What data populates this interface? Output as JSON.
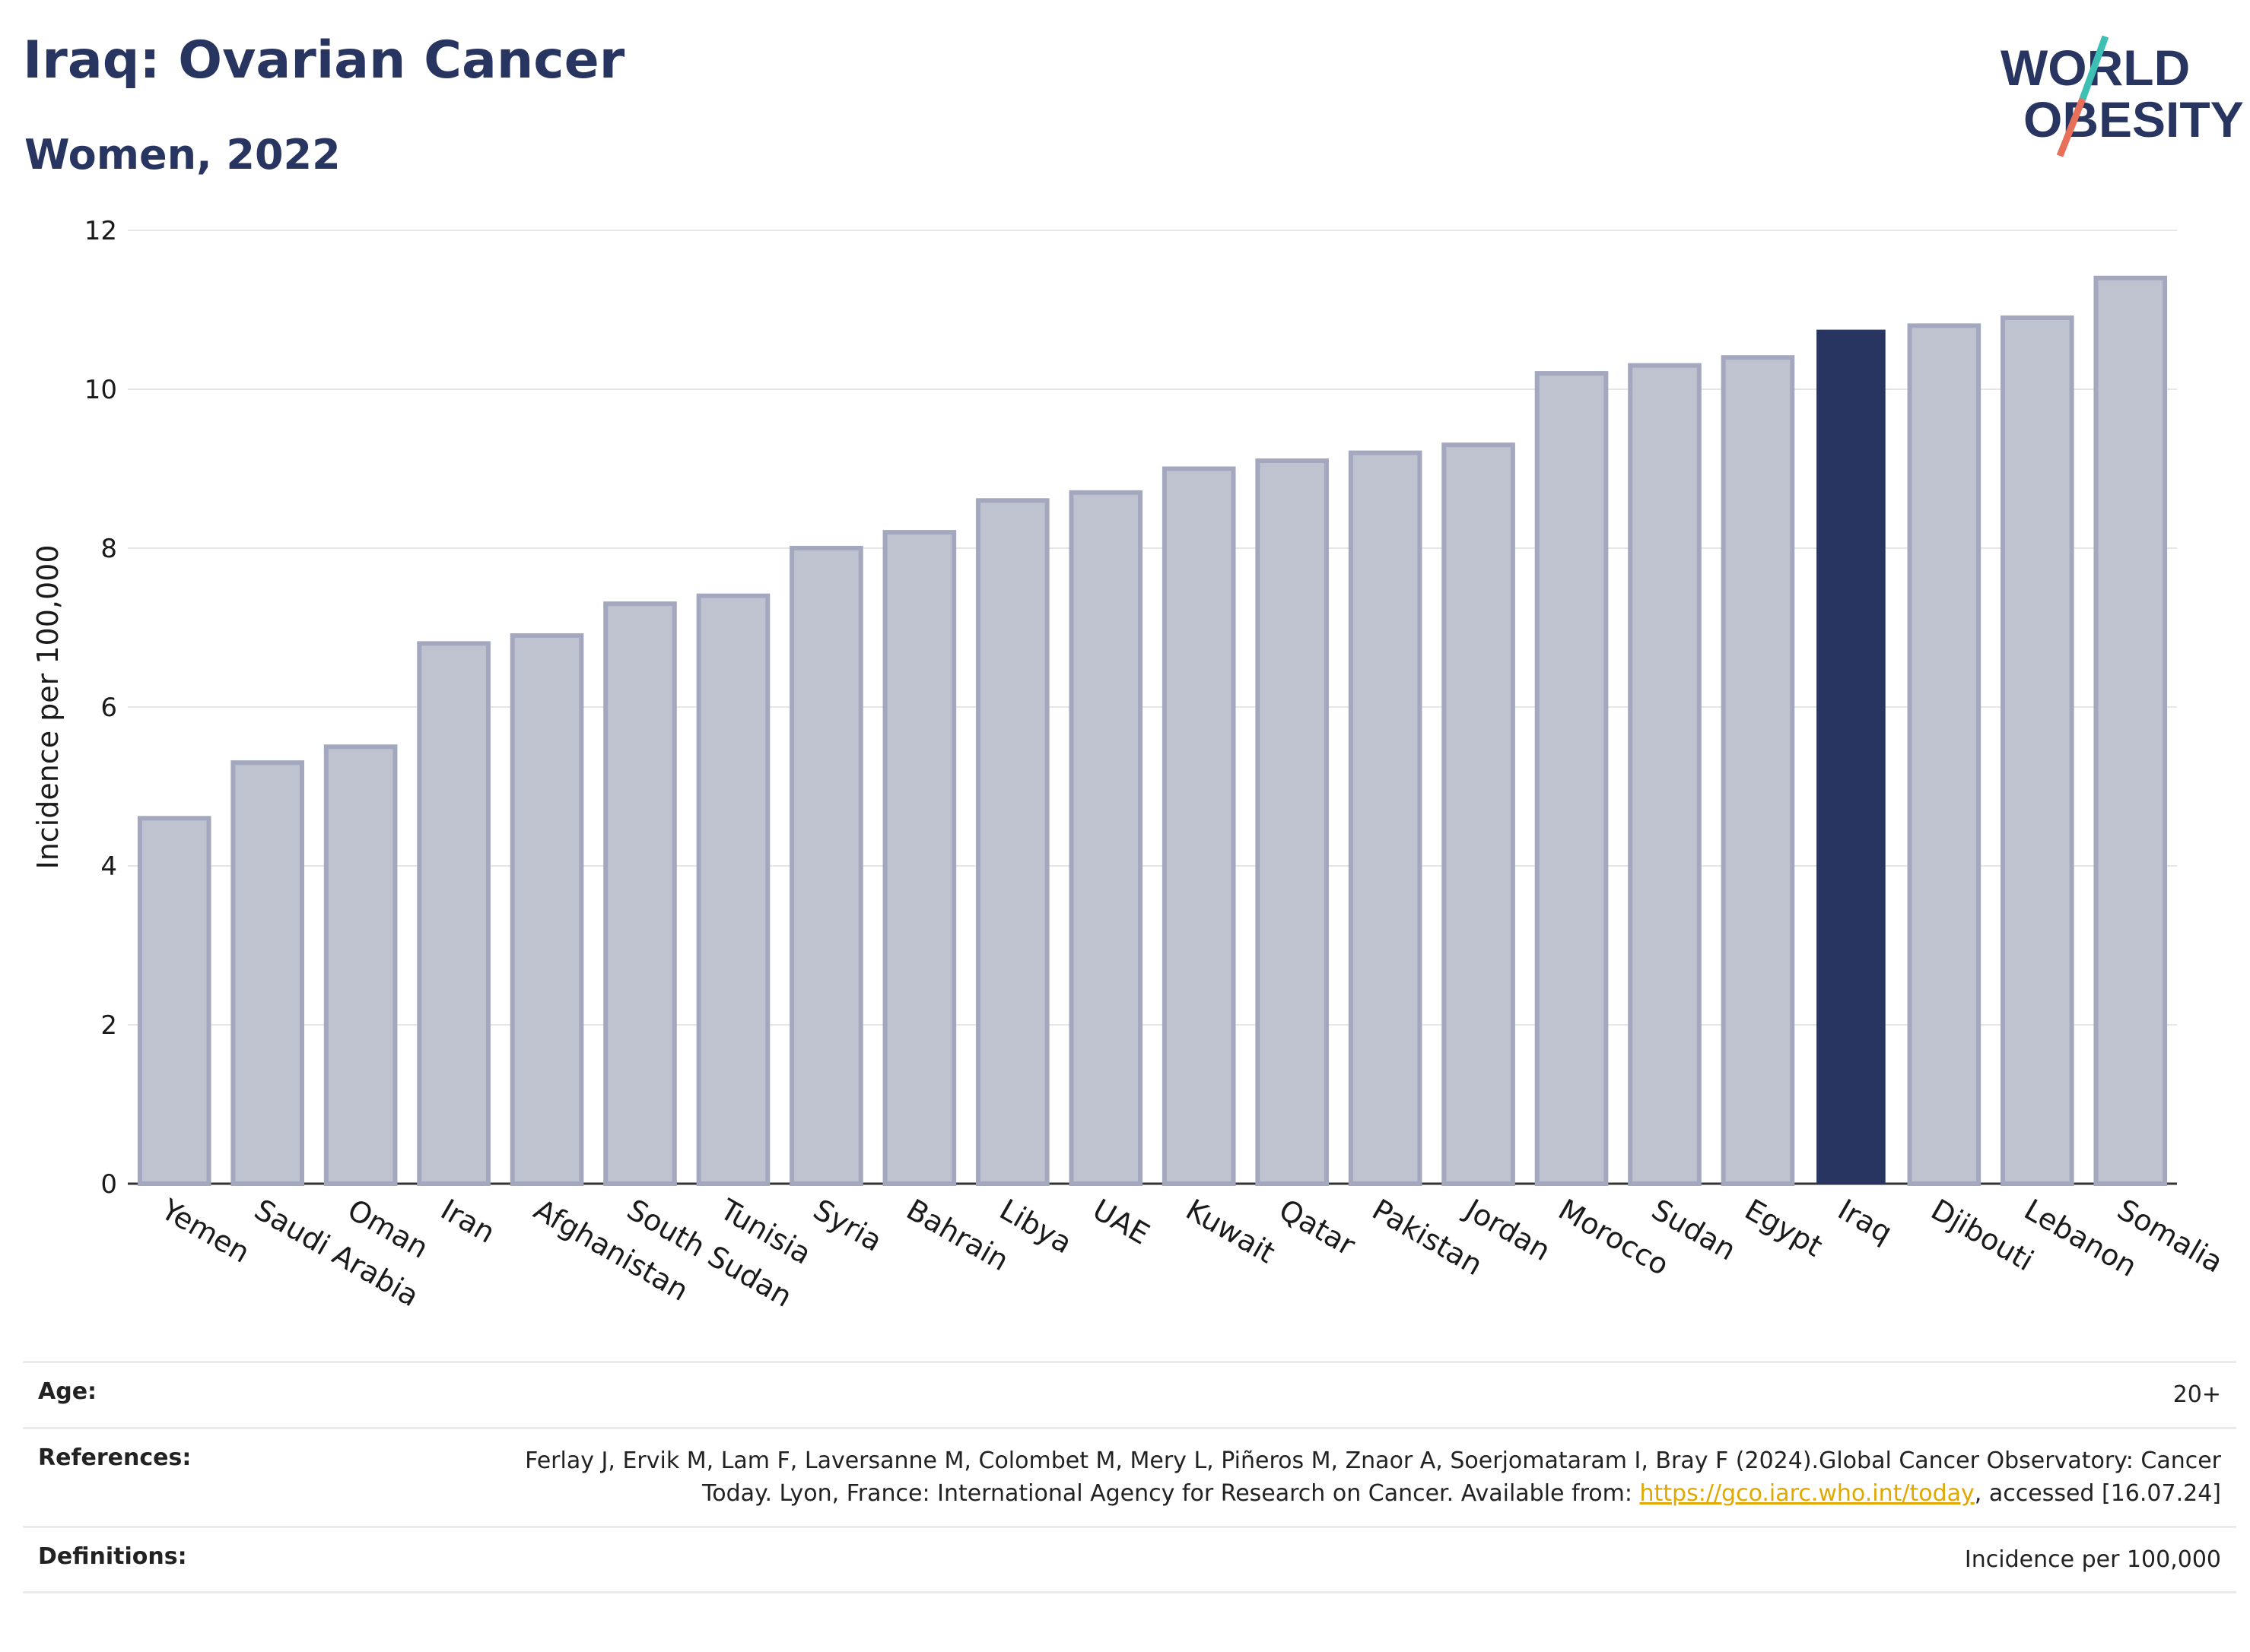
{
  "header": {
    "title": "Iraq: Ovarian Cancer",
    "subtitle": "Women, 2022"
  },
  "logo": {
    "line1": "WORLD",
    "line2": "OBESITY",
    "brand_color": "#283560",
    "accent_colors": [
      "#3cc0b4",
      "#e8705a"
    ]
  },
  "colors": {
    "highlight": "#283560",
    "bar_fill": "#bfc2cf",
    "bar_stroke": "#a3a8bf",
    "grid": "#e6e6e6"
  },
  "chart_data": {
    "type": "bar",
    "categories": [
      "Yemen",
      "Saudi Arabia",
      "Oman",
      "Iran",
      "Afghanistan",
      "South Sudan",
      "Tunisia",
      "Syria",
      "Bahrain",
      "Libya",
      "UAE",
      "Kuwait",
      "Qatar",
      "Pakistan",
      "Jordan",
      "Morocco",
      "Sudan",
      "Egypt",
      "Iraq",
      "Djibouti",
      "Lebanon",
      "Somalia"
    ],
    "values": [
      4.6,
      5.3,
      5.5,
      6.8,
      6.9,
      7.3,
      7.4,
      8.0,
      8.2,
      8.6,
      8.7,
      9.0,
      9.1,
      9.2,
      9.3,
      10.2,
      10.3,
      10.4,
      10.75,
      10.8,
      10.9,
      11.4
    ],
    "highlight": "Iraq",
    "ylabel": "Incidence per 100,000",
    "xlabel": "",
    "ylim": [
      0,
      12
    ],
    "yticks": [
      0,
      2,
      4,
      6,
      8,
      10,
      12
    ],
    "grid": true
  },
  "info": {
    "age_label": "Age:",
    "age_value": "20+",
    "references_label": "References:",
    "references_text": "Ferlay J, Ervik M, Lam F, Laversanne M, Colombet M, Mery L, Piñeros M, Znaor A, Soerjomataram I, Bray F (2024).Global Cancer Observatory: Cancer Today. Lyon, France: International Agency for Research on Cancer. Available from: ",
    "references_link": "https://gco.iarc.who.int/today",
    "references_suffix": ", accessed [16.07.24]",
    "definitions_label": "Definitions:",
    "definitions_value": "Incidence per 100,000"
  }
}
